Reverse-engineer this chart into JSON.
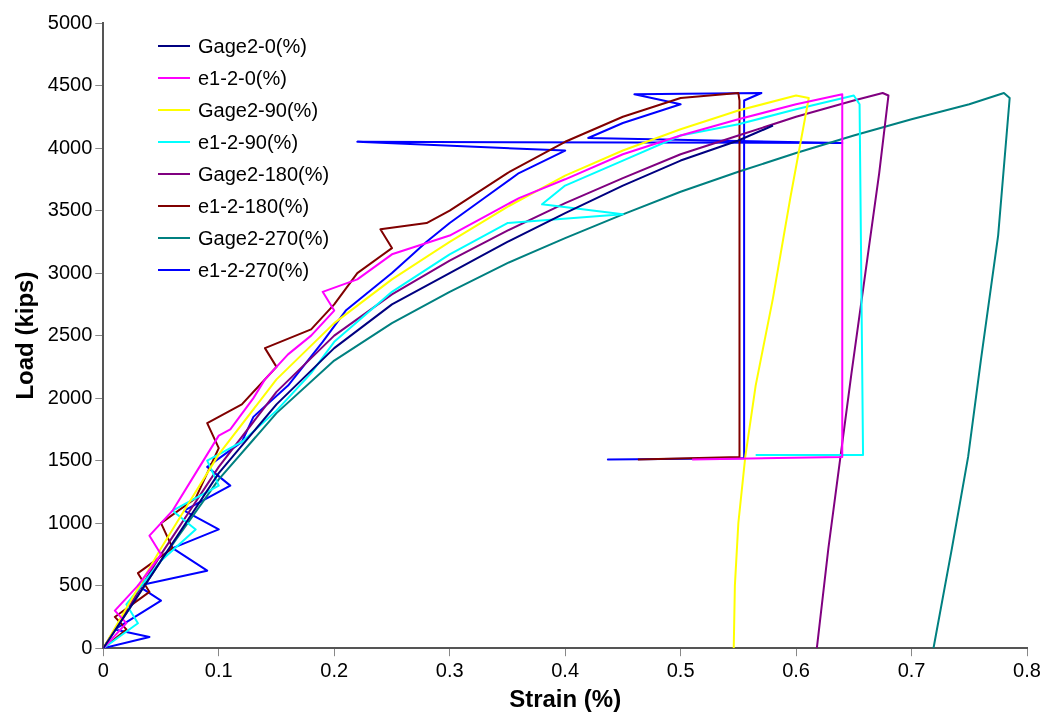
{
  "chart_data": {
    "type": "line",
    "xlabel": "Strain (%)",
    "ylabel": "Load (kips)",
    "xlim": [
      0,
      0.8
    ],
    "ylim": [
      0,
      5000
    ],
    "xticks": [
      0,
      0.1,
      0.2,
      0.3,
      0.4,
      0.5,
      0.6,
      0.7,
      0.8
    ],
    "yticks": [
      0,
      500,
      1000,
      1500,
      2000,
      2500,
      3000,
      3500,
      4000,
      4500,
      5000
    ],
    "grid": false,
    "legend": "top left",
    "marker": "none",
    "line_style": "solid",
    "series": [
      {
        "name": "Gage2-0(%)",
        "color": "#000080",
        "x": [
          0,
          0.05,
          0.1,
          0.15,
          0.2,
          0.25,
          0.3,
          0.35,
          0.4,
          0.45,
          0.5,
          0.55,
          0.58
        ],
        "values": [
          0,
          700,
          1400,
          1950,
          2400,
          2750,
          3000,
          3250,
          3480,
          3700,
          3900,
          4060,
          4180
        ]
      },
      {
        "name": "e1-2-0(%)",
        "color": "#ff00ff",
        "x": [
          0,
          0.02,
          0.01,
          0.03,
          0.05,
          0.04,
          0.06,
          0.08,
          0.1,
          0.11,
          0.13,
          0.14,
          0.16,
          0.18,
          0.2,
          0.19,
          0.22,
          0.25,
          0.3,
          0.33,
          0.36,
          0.4,
          0.45,
          0.5,
          0.55,
          0.6,
          0.64,
          0.64,
          0.51
        ],
        "values": [
          0,
          200,
          300,
          500,
          750,
          900,
          1100,
          1400,
          1700,
          1750,
          2000,
          2150,
          2350,
          2500,
          2700,
          2850,
          2950,
          3150,
          3300,
          3450,
          3600,
          3750,
          3950,
          4100,
          4230,
          4350,
          4430,
          1530,
          1510
        ]
      },
      {
        "name": "Gage2-90(%)",
        "color": "#ffff00",
        "x": [
          0,
          0.05,
          0.1,
          0.15,
          0.2,
          0.25,
          0.3,
          0.35,
          0.4,
          0.45,
          0.5,
          0.55,
          0.6,
          0.611,
          0.595,
          0.58,
          0.565,
          0.556,
          0.55,
          0.547,
          0.546
        ],
        "values": [
          0,
          800,
          1550,
          2150,
          2600,
          2950,
          3250,
          3530,
          3780,
          3980,
          4150,
          4300,
          4420,
          4400,
          3600,
          2800,
          2100,
          1530,
          1000,
          500,
          0
        ]
      },
      {
        "name": "e1-2-90(%)",
        "color": "#00ffff",
        "x": [
          0,
          0.03,
          0.02,
          0.05,
          0.08,
          0.06,
          0.1,
          0.09,
          0.12,
          0.15,
          0.18,
          0.2,
          0.25,
          0.3,
          0.35,
          0.45,
          0.38,
          0.4,
          0.45,
          0.5,
          0.55,
          0.6,
          0.65,
          0.655,
          0.658,
          0.565
        ],
        "values": [
          0,
          200,
          350,
          700,
          950,
          1100,
          1300,
          1500,
          1650,
          1900,
          2200,
          2450,
          2850,
          3150,
          3400,
          3470,
          3550,
          3700,
          3900,
          4100,
          4190,
          4310,
          4420,
          4350,
          1545,
          1545
        ]
      },
      {
        "name": "Gage2-180(%)",
        "color": "#800080",
        "x": [
          0,
          0.05,
          0.1,
          0.15,
          0.2,
          0.25,
          0.3,
          0.35,
          0.4,
          0.45,
          0.5,
          0.55,
          0.6,
          0.65,
          0.675,
          0.68,
          0.672,
          0.66,
          0.648,
          0.638,
          0.628,
          0.618
        ],
        "values": [
          0,
          750,
          1450,
          2050,
          2500,
          2830,
          3100,
          3340,
          3560,
          3760,
          3950,
          4100,
          4250,
          4380,
          4440,
          4420,
          3800,
          3000,
          2200,
          1500,
          800,
          0
        ]
      },
      {
        "name": "e1-2-180(%)",
        "color": "#800000",
        "x": [
          0,
          0.02,
          0.01,
          0.04,
          0.03,
          0.06,
          0.05,
          0.08,
          0.1,
          0.09,
          0.12,
          0.15,
          0.14,
          0.18,
          0.2,
          0.22,
          0.25,
          0.24,
          0.28,
          0.3,
          0.35,
          0.4,
          0.45,
          0.5,
          0.55,
          0.551,
          0.551,
          0.463
        ],
        "values": [
          0,
          150,
          250,
          450,
          600,
          800,
          1000,
          1200,
          1600,
          1800,
          1950,
          2250,
          2400,
          2550,
          2750,
          3000,
          3200,
          3350,
          3400,
          3500,
          3800,
          4050,
          4250,
          4400,
          4440,
          4380,
          1530,
          1510
        ]
      },
      {
        "name": "Gage2-270(%)",
        "color": "#008080",
        "x": [
          0,
          0.05,
          0.1,
          0.15,
          0.2,
          0.25,
          0.3,
          0.35,
          0.4,
          0.45,
          0.5,
          0.55,
          0.6,
          0.65,
          0.7,
          0.75,
          0.78,
          0.785,
          0.775,
          0.76,
          0.749,
          0.735,
          0.719
        ],
        "values": [
          0,
          700,
          1350,
          1880,
          2300,
          2600,
          2850,
          3080,
          3280,
          3470,
          3650,
          3810,
          3960,
          4100,
          4230,
          4350,
          4440,
          4400,
          3300,
          2300,
          1530,
          800,
          0
        ]
      },
      {
        "name": "e1-2-270(%)",
        "color": "#0000ff",
        "x": [
          0,
          0.04,
          0.01,
          0.05,
          0.03,
          0.09,
          0.06,
          0.1,
          0.07,
          0.11,
          0.09,
          0.12,
          0.13,
          0.16,
          0.19,
          0.21,
          0.25,
          0.28,
          0.3,
          0.33,
          0.36,
          0.4,
          0.22,
          0.64,
          0.42,
          0.45,
          0.5,
          0.46,
          0.57,
          0.555,
          0.555,
          0.437,
          0.556
        ],
        "values": [
          0,
          90,
          150,
          380,
          500,
          620,
          800,
          950,
          1100,
          1300,
          1450,
          1650,
          1850,
          2100,
          2450,
          2700,
          3000,
          3250,
          3400,
          3600,
          3800,
          3980,
          4050,
          4040,
          4080,
          4200,
          4350,
          4430,
          4440,
          4380,
          1520,
          1510,
          1520
        ]
      }
    ]
  }
}
